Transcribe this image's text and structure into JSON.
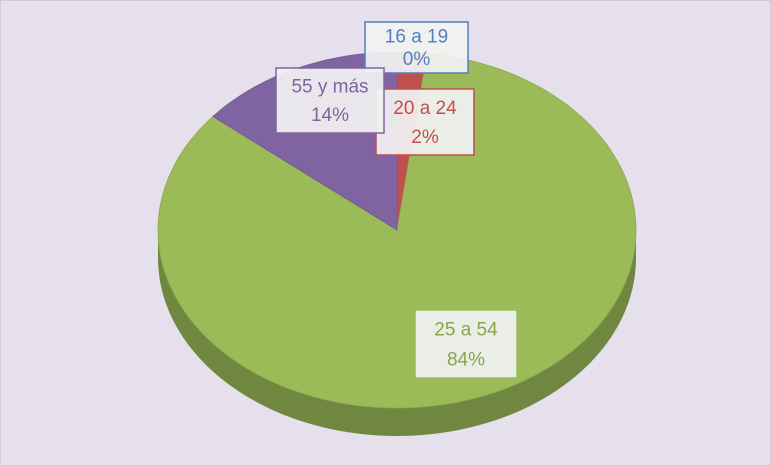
{
  "chart_data": {
    "type": "pie",
    "categories": [
      "16 a 19",
      "20 a 24",
      "25 a 54",
      "55 y más"
    ],
    "values": [
      0,
      2,
      84,
      14
    ],
    "value_labels": [
      "0%",
      "2%",
      "84%",
      "14%"
    ],
    "colors": [
      "#4f81bd",
      "#c0504d",
      "#9bbb59",
      "#8064a2"
    ]
  }
}
